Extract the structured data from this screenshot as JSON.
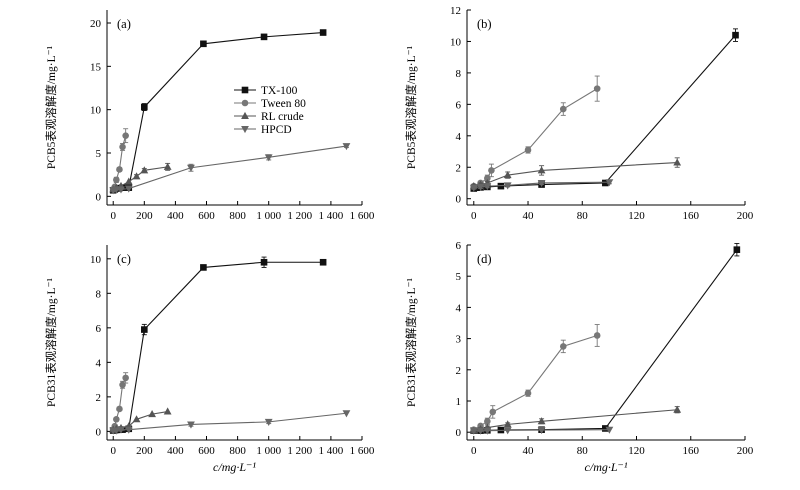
{
  "chart_data": [
    {
      "id": "a",
      "type": "scatter",
      "panel_label": "(a)",
      "ylabel": "PCB5表观溶解度/mg·L⁻¹",
      "xlabel": "",
      "xlim": [
        -40,
        1600
      ],
      "ylim": [
        -1,
        21.5
      ],
      "xticks": [
        0,
        200,
        400,
        600,
        800,
        1000,
        1200,
        1400,
        1600
      ],
      "xtick_labels": [
        "0",
        "200",
        "400",
        "600",
        "800",
        "1 000",
        "1 200",
        "1 400",
        "1 600"
      ],
      "yticks": [
        0,
        5,
        10,
        15,
        20
      ],
      "ytick_labels": [
        "0",
        "5",
        "10",
        "15",
        "20"
      ],
      "show_legend": true,
      "series": [
        {
          "name": "TX-100",
          "marker": "square",
          "color": "#111111",
          "x": [
            0,
            10,
            20,
            40,
            60,
            100,
            200,
            580,
            970,
            1350
          ],
          "y": [
            0.7,
            0.8,
            0.9,
            0.95,
            1.0,
            1.0,
            10.3,
            17.6,
            18.4,
            18.9
          ],
          "err": [
            0.1,
            0.1,
            0.1,
            0.1,
            0.1,
            0.1,
            0.4,
            0.3,
            0.2,
            0.15
          ]
        },
        {
          "name": "Tween 80",
          "marker": "circle",
          "color": "#777777",
          "x": [
            0,
            10,
            20,
            40,
            60,
            80
          ],
          "y": [
            0.8,
            1.1,
            1.9,
            3.1,
            5.7,
            7.0
          ],
          "err": [
            0.1,
            0.1,
            0.3,
            0.2,
            0.4,
            0.8
          ]
        },
        {
          "name": "RL crude",
          "marker": "triangle-up",
          "color": "#555555",
          "x": [
            0,
            20,
            50,
            100,
            150,
            200,
            350
          ],
          "y": [
            0.8,
            1.0,
            1.2,
            1.7,
            2.3,
            3.0,
            3.4
          ],
          "err": [
            0.1,
            0.1,
            0.1,
            0.1,
            0.2,
            0.2,
            0.4
          ]
        },
        {
          "name": "HPCD",
          "marker": "triangle-down",
          "color": "#666666",
          "x": [
            0,
            20,
            50,
            100,
            500,
            1000,
            1500
          ],
          "y": [
            0.7,
            0.8,
            0.8,
            0.9,
            3.3,
            4.5,
            5.8
          ],
          "err": [
            0.1,
            0.1,
            0.1,
            0.1,
            0.4,
            0.3,
            0.15
          ]
        }
      ]
    },
    {
      "id": "b",
      "type": "scatter",
      "panel_label": "(b)",
      "ylabel": "PCB5表观溶解度/mg·L⁻¹",
      "xlabel": "",
      "xlim": [
        -5,
        200
      ],
      "ylim": [
        -0.4,
        12
      ],
      "xticks": [
        0,
        40,
        80,
        120,
        160,
        200
      ],
      "xtick_labels": [
        "0",
        "40",
        "80",
        "120",
        "160",
        "200"
      ],
      "yticks": [
        0,
        2,
        4,
        6,
        8,
        10,
        12
      ],
      "ytick_labels": [
        "0",
        "2",
        "4",
        "6",
        "8",
        "10",
        "12"
      ],
      "show_legend": false,
      "series": [
        {
          "name": "TX-100",
          "marker": "square",
          "color": "#111111",
          "x": [
            0,
            1,
            2,
            5,
            10,
            20,
            50,
            97,
            193
          ],
          "y": [
            0.65,
            0.7,
            0.7,
            0.72,
            0.75,
            0.8,
            0.9,
            1.0,
            10.4
          ],
          "err": [
            0.1,
            0.1,
            0.1,
            0.1,
            0.1,
            0.1,
            0.1,
            0.15,
            0.4
          ]
        },
        {
          "name": "Tween 80",
          "marker": "circle",
          "color": "#777777",
          "x": [
            0,
            5,
            10,
            13,
            40,
            66,
            91
          ],
          "y": [
            0.8,
            1.0,
            1.3,
            1.8,
            3.1,
            5.7,
            7.0
          ],
          "err": [
            0.1,
            0.1,
            0.2,
            0.4,
            0.2,
            0.4,
            0.8
          ]
        },
        {
          "name": "RL crude",
          "marker": "triangle-up",
          "color": "#555555",
          "x": [
            0,
            5,
            10,
            25,
            50,
            150
          ],
          "y": [
            0.8,
            0.9,
            1.0,
            1.5,
            1.8,
            2.3
          ],
          "err": [
            0.1,
            0.1,
            0.1,
            0.2,
            0.3,
            0.3
          ]
        },
        {
          "name": "HPCD",
          "marker": "triangle-down",
          "color": "#666666",
          "x": [
            0,
            5,
            10,
            25,
            50,
            100
          ],
          "y": [
            0.7,
            0.75,
            0.8,
            0.85,
            1.0,
            1.05
          ],
          "err": [
            0.1,
            0.1,
            0.1,
            0.1,
            0.1,
            0.1
          ]
        }
      ]
    },
    {
      "id": "c",
      "type": "scatter",
      "panel_label": "(c)",
      "ylabel": "PCB31表观溶解度/mg·L⁻¹",
      "xlabel": "c/mg·L⁻¹",
      "xlim": [
        -40,
        1600
      ],
      "ylim": [
        -0.5,
        10.8
      ],
      "xticks": [
        0,
        200,
        400,
        600,
        800,
        1000,
        1200,
        1400,
        1600
      ],
      "xtick_labels": [
        "0",
        "200",
        "400",
        "600",
        "800",
        "1 000",
        "1 200",
        "1 400",
        "1 600"
      ],
      "yticks": [
        0,
        2,
        4,
        6,
        8,
        10
      ],
      "ytick_labels": [
        "0",
        "2",
        "4",
        "6",
        "8",
        "10"
      ],
      "show_legend": false,
      "series": [
        {
          "name": "TX-100",
          "marker": "square",
          "color": "#111111",
          "x": [
            0,
            10,
            20,
            40,
            60,
            100,
            200,
            580,
            970,
            1350
          ],
          "y": [
            0.05,
            0.07,
            0.08,
            0.1,
            0.1,
            0.15,
            5.9,
            9.5,
            9.8,
            9.8
          ],
          "err": [
            0.05,
            0.05,
            0.05,
            0.05,
            0.05,
            0.05,
            0.3,
            0.1,
            0.3,
            0.1
          ]
        },
        {
          "name": "Tween 80",
          "marker": "circle",
          "color": "#777777",
          "x": [
            0,
            10,
            20,
            40,
            60,
            80
          ],
          "y": [
            0.1,
            0.3,
            0.7,
            1.3,
            2.7,
            3.1
          ],
          "err": [
            0.05,
            0.05,
            0.1,
            0.1,
            0.2,
            0.3
          ]
        },
        {
          "name": "RL crude",
          "marker": "triangle-up",
          "color": "#555555",
          "x": [
            0,
            20,
            50,
            100,
            150,
            250,
            350
          ],
          "y": [
            0.1,
            0.15,
            0.2,
            0.3,
            0.7,
            1.0,
            1.15
          ],
          "err": [
            0.05,
            0.05,
            0.05,
            0.05,
            0.05,
            0.05,
            0.05
          ]
        },
        {
          "name": "HPCD",
          "marker": "triangle-down",
          "color": "#666666",
          "x": [
            0,
            20,
            50,
            100,
            500,
            1000,
            1500
          ],
          "y": [
            0.05,
            0.05,
            0.1,
            0.1,
            0.4,
            0.55,
            1.05
          ],
          "err": [
            0.05,
            0.05,
            0.05,
            0.05,
            0.1,
            0.1,
            0.05
          ]
        }
      ]
    },
    {
      "id": "d",
      "type": "scatter",
      "panel_label": "(d)",
      "ylabel": "PCB31表观溶解度/mg·L⁻¹",
      "xlabel": "c/mg·L⁻¹",
      "xlim": [
        -5,
        200
      ],
      "ylim": [
        -0.25,
        6
      ],
      "xticks": [
        0,
        40,
        80,
        120,
        160,
        200
      ],
      "xtick_labels": [
        "0",
        "40",
        "80",
        "120",
        "160",
        "200"
      ],
      "yticks": [
        0,
        1,
        2,
        3,
        4,
        5,
        6
      ],
      "ytick_labels": [
        "0",
        "1",
        "2",
        "3",
        "4",
        "5",
        "6"
      ],
      "show_legend": false,
      "series": [
        {
          "name": "TX-100",
          "marker": "square",
          "color": "#111111",
          "x": [
            0,
            5,
            10,
            20,
            50,
            97,
            194
          ],
          "y": [
            0.05,
            0.05,
            0.06,
            0.07,
            0.08,
            0.12,
            5.85
          ],
          "err": [
            0.05,
            0.05,
            0.05,
            0.05,
            0.05,
            0.05,
            0.2
          ]
        },
        {
          "name": "Tween 80",
          "marker": "circle",
          "color": "#777777",
          "x": [
            0,
            5,
            10,
            14,
            40,
            66,
            91
          ],
          "y": [
            0.08,
            0.2,
            0.35,
            0.65,
            1.25,
            2.75,
            3.1
          ],
          "err": [
            0.05,
            0.05,
            0.1,
            0.2,
            0.1,
            0.2,
            0.35
          ]
        },
        {
          "name": "RL crude",
          "marker": "triangle-up",
          "color": "#555555",
          "x": [
            0,
            5,
            10,
            25,
            50,
            150
          ],
          "y": [
            0.05,
            0.1,
            0.15,
            0.25,
            0.35,
            0.72
          ],
          "err": [
            0.05,
            0.05,
            0.05,
            0.05,
            0.08,
            0.1
          ]
        },
        {
          "name": "HPCD",
          "marker": "triangle-down",
          "color": "#666666",
          "x": [
            0,
            5,
            10,
            25,
            50,
            100
          ],
          "y": [
            0.05,
            0.05,
            0.05,
            0.06,
            0.07,
            0.08
          ],
          "err": [
            0.03,
            0.03,
            0.03,
            0.03,
            0.03,
            0.03
          ]
        }
      ]
    }
  ]
}
